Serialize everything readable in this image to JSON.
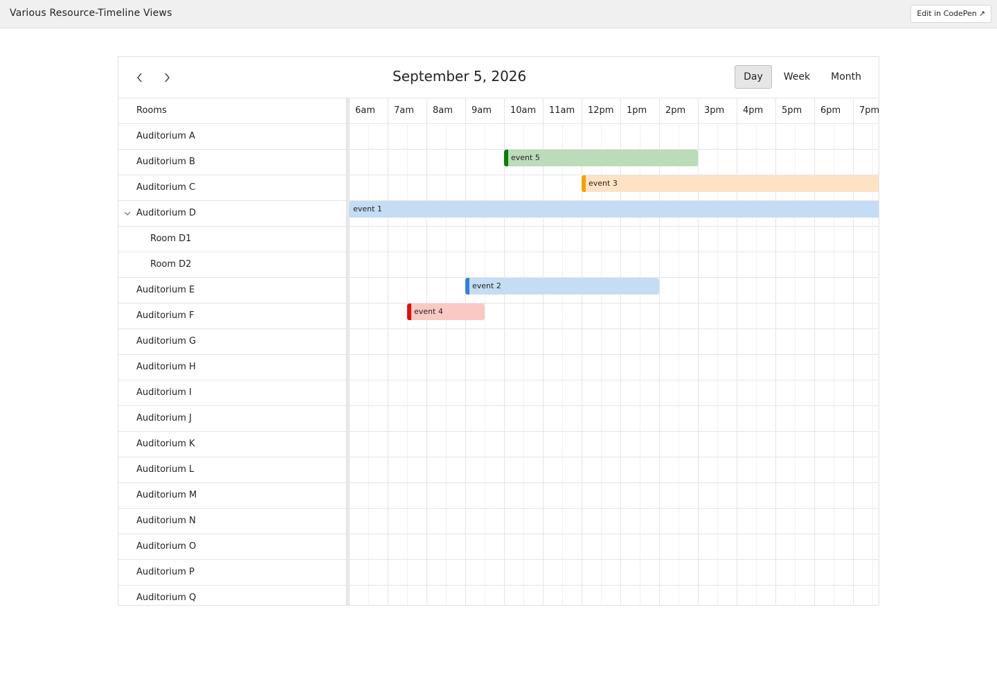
{
  "window": {
    "title": "Various Resource-Timeline Views",
    "codepen_label": "Edit in CodePen",
    "codepen_icon": "external-link-icon"
  },
  "toolbar": {
    "prev_icon": "chevron-left-icon",
    "next_icon": "chevron-right-icon",
    "date": "September 5, 2026",
    "views": [
      {
        "label": "Day",
        "active": true
      },
      {
        "label": "Week",
        "active": false
      },
      {
        "label": "Month",
        "active": false
      }
    ]
  },
  "resources": {
    "header": "Rooms",
    "rows": [
      {
        "label": "Auditorium A",
        "level": 0
      },
      {
        "label": "Auditorium B",
        "level": 0
      },
      {
        "label": "Auditorium C",
        "level": 0
      },
      {
        "label": "Auditorium D",
        "level": 0,
        "expanded": true
      },
      {
        "label": "Room D1",
        "level": 1
      },
      {
        "label": "Room D2",
        "level": 1
      },
      {
        "label": "Auditorium E",
        "level": 0
      },
      {
        "label": "Auditorium F",
        "level": 0
      },
      {
        "label": "Auditorium G",
        "level": 0
      },
      {
        "label": "Auditorium H",
        "level": 0
      },
      {
        "label": "Auditorium I",
        "level": 0
      },
      {
        "label": "Auditorium J",
        "level": 0
      },
      {
        "label": "Auditorium K",
        "level": 0
      },
      {
        "label": "Auditorium L",
        "level": 0
      },
      {
        "label": "Auditorium M",
        "level": 0
      },
      {
        "label": "Auditorium N",
        "level": 0
      },
      {
        "label": "Auditorium O",
        "level": 0
      },
      {
        "label": "Auditorium P",
        "level": 0
      },
      {
        "label": "Auditorium Q",
        "level": 0
      }
    ]
  },
  "timeline": {
    "slots": [
      "6am",
      "7am",
      "8am",
      "9am",
      "10am",
      "11am",
      "12pm",
      "1pm",
      "2pm",
      "3pm",
      "4pm",
      "5pm",
      "6pm",
      "7pm"
    ],
    "start_hour": 6,
    "events": [
      {
        "title": "event 5",
        "row": 1,
        "start": 10,
        "end": 15,
        "bg": "#bcdbb9",
        "accent": "#0a7d0a"
      },
      {
        "title": "event 3",
        "row": 2,
        "start": 12,
        "end": 20,
        "bg": "#fde3c4",
        "accent": "#f5a000"
      },
      {
        "title": "event 1",
        "row": 3,
        "start": 6,
        "end": 20,
        "bg": "#c5ddf4",
        "accent": null
      },
      {
        "title": "event 2",
        "row": 6,
        "start": 9,
        "end": 14,
        "bg": "#c5ddf4",
        "accent": "#3a7fd0"
      },
      {
        "title": "event 4",
        "row": 7,
        "start": 7.5,
        "end": 9.5,
        "bg": "#fbc9c3",
        "accent": "#e01010"
      }
    ]
  }
}
